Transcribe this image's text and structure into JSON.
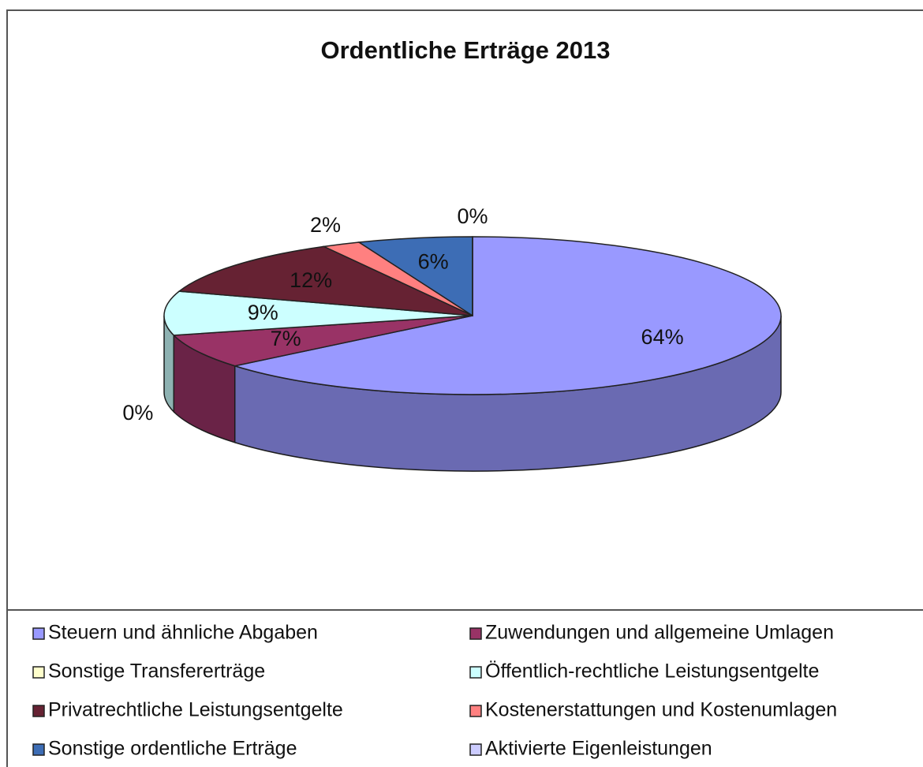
{
  "chart_data": {
    "type": "pie3d",
    "title": "Ordentliche Erträge 2013",
    "categories": [
      "Steuern und ähnliche Abgaben",
      "Zuwendungen und allgemeine Umlagen",
      "Sonstige Transfererträge",
      "Öffentlich-rechtliche Leistungsentgelte",
      "Privatrechtliche Leistungsentgelte",
      "Kostenerstattungen und Kostenumlagen",
      "Sonstige ordentliche Erträge",
      "Aktivierte Eigenleistungen"
    ],
    "values": [
      64,
      7,
      0,
      9,
      12,
      2,
      6,
      0
    ],
    "value_labels": [
      "64%",
      "7%",
      "0%",
      "9%",
      "12%",
      "2%",
      "6%",
      "0%"
    ],
    "colors": [
      "#9999ff",
      "#993366",
      "#ffffcc",
      "#ccffff",
      "#662233",
      "#ff8080",
      "#3d6db5",
      "#ccccff"
    ],
    "legend": "bottom"
  }
}
